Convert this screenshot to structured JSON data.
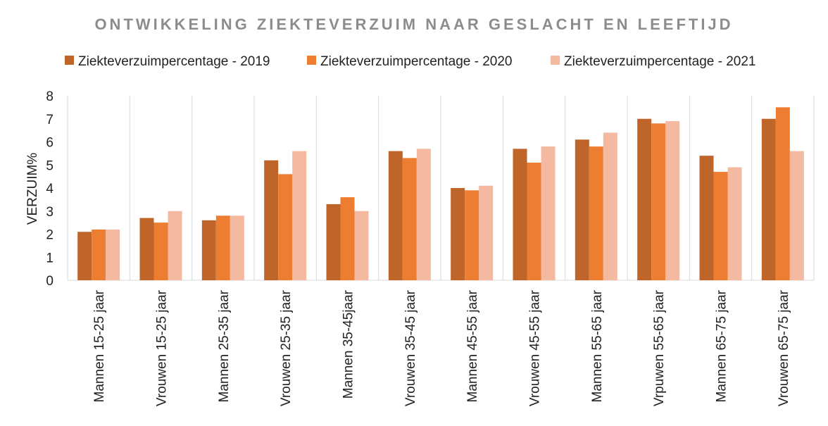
{
  "chart_data": {
    "type": "bar",
    "title": "ONTWIKKELING ZIEKTEVERZUIM NAAR GESLACHT EN LEEFTIJD",
    "ylabel": "VERZUIM%",
    "xlabel": "",
    "ylim": [
      0,
      8
    ],
    "yticks": [
      "0",
      "1",
      "2",
      "3",
      "4",
      "5",
      "6",
      "7",
      "8"
    ],
    "grid": "vertical",
    "legend_position": "top",
    "categories": [
      "Mannen 15-25 jaar",
      "Vrouwen 15-25 jaar",
      "Mannen 25-35 jaar",
      "Vrouwen 25-35 jaar",
      "Mannen 35-45jaar",
      "Vrouwen 35-45 jaar",
      "Mannen 45-55 jaar",
      "Vrouwen 45-55 jaar",
      "Mannen 55-65 jaar",
      "Vrpuwen 55-65 jaar",
      "Mannen 65-75 jaar",
      "Vrouwen 65-75 jaar"
    ],
    "series": [
      {
        "name": "Ziekteverzuimpercentage  - 2019",
        "color": "#c0652a",
        "values": [
          2.1,
          2.7,
          2.6,
          5.2,
          3.3,
          5.6,
          4.0,
          5.7,
          6.1,
          7.0,
          5.4,
          7.0
        ]
      },
      {
        "name": "Ziekteverzuimpercentage  - 2020",
        "color": "#ed7d31",
        "values": [
          2.2,
          2.5,
          2.8,
          4.6,
          3.6,
          5.3,
          3.9,
          5.1,
          5.8,
          6.8,
          4.7,
          7.5
        ]
      },
      {
        "name": "Ziekteverzuimpercentage  - 2021",
        "color": "#f4b9a1",
        "values": [
          2.2,
          3.0,
          2.8,
          5.6,
          3.0,
          5.7,
          4.1,
          5.8,
          6.4,
          6.9,
          4.9,
          5.6
        ]
      }
    ]
  }
}
